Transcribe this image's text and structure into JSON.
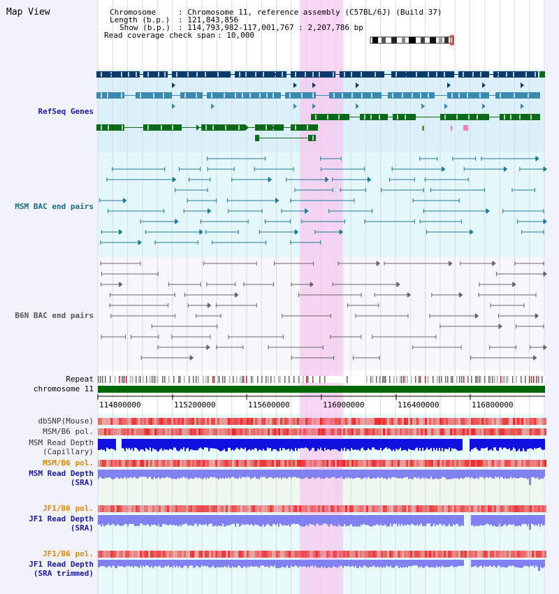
{
  "page_title": "Map View",
  "header": {
    "chromosome_label": "Chromosome",
    "chromosome_value": ": Chromosome 11, reference assembly (C57BL/6J) (Build 37)",
    "length_label": "Length (b.p.)",
    "length_value": ": 121,843,856",
    "show_label": "Show (b.p.)",
    "show_value": ": 114,793,982-117,001,767 : 2,207,786 bp",
    "span_label": "Read coverage check span",
    "span_value": ": 10,000"
  },
  "tracks": {
    "refseq": "RefSeq Genes",
    "msm_bac": "MSM BAC end pairs",
    "b6n_bac": "B6N BAC end pairs",
    "repeat": "Repeat",
    "chromosome": "chromosome 11",
    "dbsnp": "dbSNP(Mouse)",
    "msm_b6_pol_1": "MSM/B6 pol.",
    "msm_depth_cap_1": "MSM Read Depth",
    "msm_depth_cap_2": "(Capillary)",
    "msm_b6_pol_2": "MSM/B6 pol.",
    "msm_depth_sra_1": "MSM Read Depth",
    "msm_depth_sra_2": "(SRA)",
    "jf1_b6_pol_1": "JF1/B6 pol.",
    "jf1_depth_sra_1": "JF1 Read Depth",
    "jf1_depth_sra_2": "(SRA)",
    "jf1_b6_pol_2": "JF1/B6 pol.",
    "jf1_depth_trim_1": "JF1 Read Depth",
    "jf1_depth_trim_2": "(SRA trimmed)"
  },
  "axis_ticks": [
    "114800000",
    "115200000",
    "115600000",
    "116000000",
    "116400000",
    "116800000"
  ],
  "colors": {
    "refseq_label": "#1a1aa6",
    "msm_bac_label": "#1a6a8a",
    "b6n_bac_label": "#555555",
    "sra_label": "#1a1aa6",
    "pol_label": "#e08a00",
    "highlight": "#f8c8f0",
    "chromosome_bar": "#006600",
    "gene_dark": "#0a3a6a",
    "gene_light": "#3a8ab0",
    "gene_green": "#0a6a1a",
    "depth_blue": "#1010e0",
    "depth_lavender": "#8080f0"
  }
}
